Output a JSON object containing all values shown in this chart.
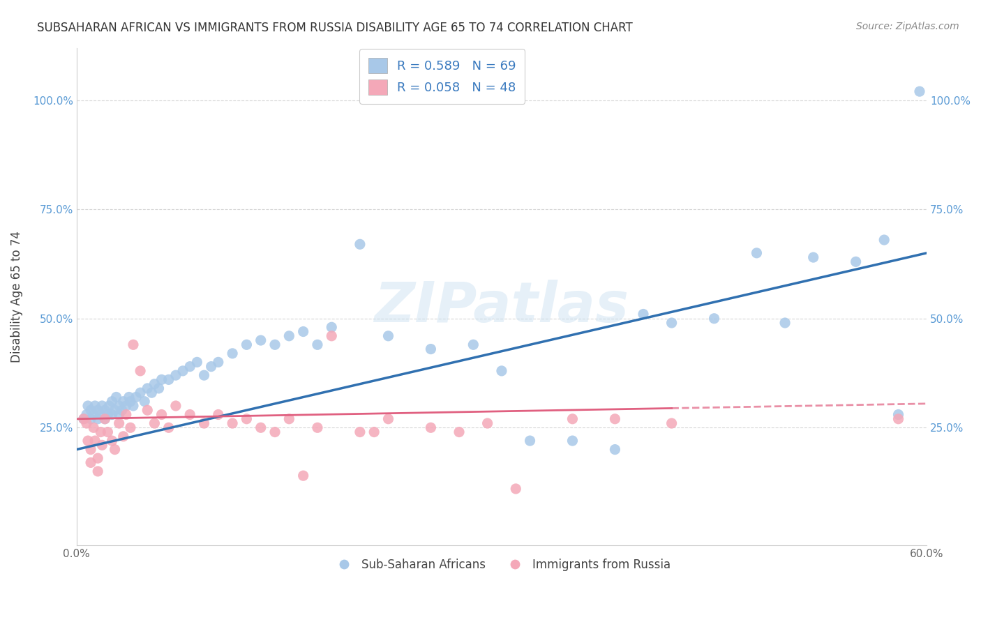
{
  "title": "SUBSAHARAN AFRICAN VS IMMIGRANTS FROM RUSSIA DISABILITY AGE 65 TO 74 CORRELATION CHART",
  "source": "Source: ZipAtlas.com",
  "ylabel": "Disability Age 65 to 74",
  "xlim": [
    0.0,
    0.6
  ],
  "ylim": [
    -0.02,
    1.12
  ],
  "xtick_labels": [
    "0.0%",
    "",
    "",
    "",
    "",
    "",
    "60.0%"
  ],
  "xtick_vals": [
    0.0,
    0.1,
    0.2,
    0.3,
    0.4,
    0.5,
    0.6
  ],
  "ytick_labels": [
    "25.0%",
    "50.0%",
    "75.0%",
    "100.0%"
  ],
  "ytick_vals": [
    0.25,
    0.5,
    0.75,
    1.0
  ],
  "blue_R": 0.589,
  "blue_N": 69,
  "pink_R": 0.058,
  "pink_N": 48,
  "blue_color": "#a8c8e8",
  "pink_color": "#f4a8b8",
  "blue_line_color": "#3070b0",
  "pink_line_color": "#e06080",
  "watermark": "ZIPatlas",
  "blue_scatter_x": [
    0.005,
    0.007,
    0.008,
    0.01,
    0.01,
    0.012,
    0.013,
    0.015,
    0.015,
    0.017,
    0.018,
    0.02,
    0.02,
    0.022,
    0.023,
    0.025,
    0.025,
    0.027,
    0.028,
    0.03,
    0.03,
    0.032,
    0.033,
    0.035,
    0.037,
    0.038,
    0.04,
    0.042,
    0.045,
    0.048,
    0.05,
    0.053,
    0.055,
    0.058,
    0.06,
    0.065,
    0.07,
    0.075,
    0.08,
    0.085,
    0.09,
    0.095,
    0.1,
    0.11,
    0.12,
    0.13,
    0.14,
    0.15,
    0.16,
    0.17,
    0.18,
    0.2,
    0.22,
    0.25,
    0.28,
    0.3,
    0.32,
    0.35,
    0.38,
    0.4,
    0.42,
    0.45,
    0.48,
    0.5,
    0.52,
    0.55,
    0.57,
    0.58,
    0.595
  ],
  "blue_scatter_y": [
    0.27,
    0.28,
    0.3,
    0.27,
    0.29,
    0.28,
    0.3,
    0.27,
    0.29,
    0.28,
    0.3,
    0.27,
    0.29,
    0.28,
    0.3,
    0.28,
    0.31,
    0.29,
    0.32,
    0.28,
    0.3,
    0.29,
    0.31,
    0.3,
    0.32,
    0.31,
    0.3,
    0.32,
    0.33,
    0.31,
    0.34,
    0.33,
    0.35,
    0.34,
    0.36,
    0.36,
    0.37,
    0.38,
    0.39,
    0.4,
    0.37,
    0.39,
    0.4,
    0.42,
    0.44,
    0.45,
    0.44,
    0.46,
    0.47,
    0.44,
    0.48,
    0.67,
    0.46,
    0.43,
    0.44,
    0.38,
    0.22,
    0.22,
    0.2,
    0.51,
    0.49,
    0.5,
    0.65,
    0.49,
    0.64,
    0.63,
    0.68,
    0.28,
    1.02
  ],
  "pink_scatter_x": [
    0.005,
    0.007,
    0.008,
    0.01,
    0.01,
    0.012,
    0.013,
    0.015,
    0.015,
    0.017,
    0.018,
    0.02,
    0.022,
    0.025,
    0.027,
    0.03,
    0.033,
    0.035,
    0.038,
    0.04,
    0.045,
    0.05,
    0.055,
    0.06,
    0.065,
    0.07,
    0.08,
    0.09,
    0.1,
    0.11,
    0.12,
    0.13,
    0.14,
    0.15,
    0.16,
    0.17,
    0.18,
    0.2,
    0.21,
    0.22,
    0.25,
    0.27,
    0.29,
    0.31,
    0.35,
    0.38,
    0.42,
    0.58
  ],
  "pink_scatter_y": [
    0.27,
    0.26,
    0.22,
    0.2,
    0.17,
    0.25,
    0.22,
    0.18,
    0.15,
    0.24,
    0.21,
    0.27,
    0.24,
    0.22,
    0.2,
    0.26,
    0.23,
    0.28,
    0.25,
    0.44,
    0.38,
    0.29,
    0.26,
    0.28,
    0.25,
    0.3,
    0.28,
    0.26,
    0.28,
    0.26,
    0.27,
    0.25,
    0.24,
    0.27,
    0.14,
    0.25,
    0.46,
    0.24,
    0.24,
    0.27,
    0.25,
    0.24,
    0.26,
    0.11,
    0.27,
    0.27,
    0.26,
    0.27
  ]
}
